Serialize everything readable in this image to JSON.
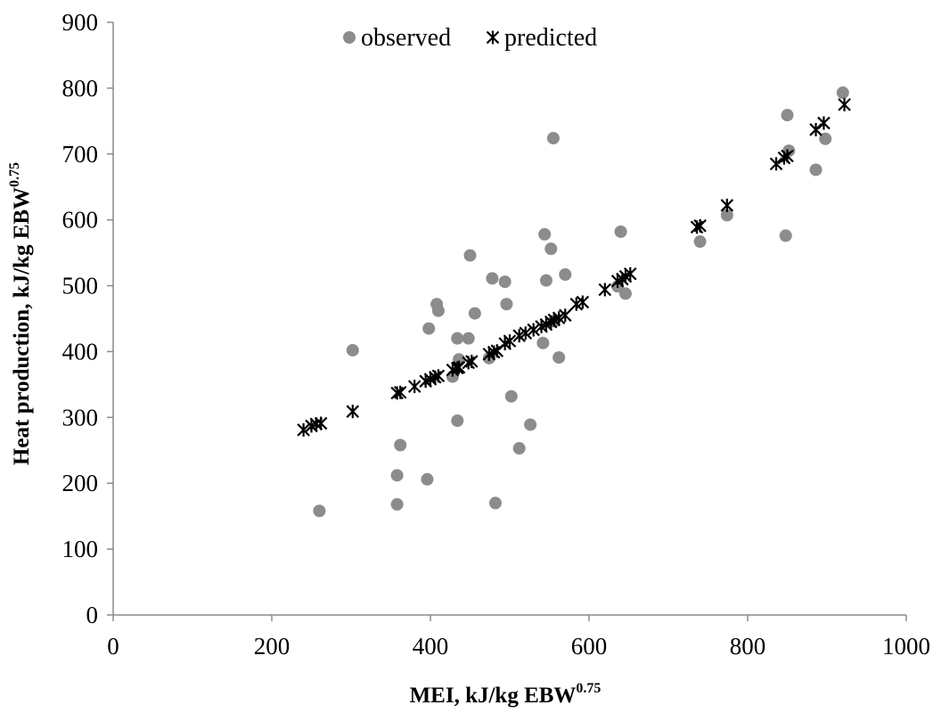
{
  "chart_data": {
    "type": "scatter",
    "xlabel": "MEI, kJ/kg EBW",
    "xlabel_sup": "0.75",
    "ylabel": "Heat production, kJ/kg EBW",
    "ylabel_sup": "0.75",
    "xlim": [
      0,
      1000
    ],
    "ylim": [
      0,
      900
    ],
    "xticks": [
      "0",
      "200",
      "400",
      "600",
      "800",
      "1000"
    ],
    "yticks": [
      "0",
      "100",
      "200",
      "300",
      "400",
      "500",
      "600",
      "700",
      "800",
      "900"
    ],
    "grid": false,
    "legend_position": "top-center",
    "series": [
      {
        "name": "observed",
        "marker": "circle",
        "color": "#8c8c8c",
        "x": [
          260,
          302,
          358,
          358,
          362,
          396,
          398,
          408,
          410,
          428,
          434,
          434,
          436,
          448,
          450,
          456,
          474,
          478,
          482,
          494,
          496,
          502,
          512,
          526,
          542,
          544,
          546,
          552,
          555,
          556,
          562,
          570,
          636,
          640,
          646,
          740,
          774,
          848,
          850,
          852,
          886,
          898,
          920
        ],
        "y": [
          158,
          402,
          168,
          212,
          258,
          206,
          435,
          472,
          462,
          362,
          420,
          295,
          388,
          420,
          546,
          458,
          390,
          511,
          170,
          506,
          472,
          332,
          253,
          289,
          413,
          578,
          508,
          556,
          724,
          446,
          391,
          517,
          499,
          582,
          488,
          567,
          607,
          576,
          759,
          705,
          676,
          723,
          793
        ]
      },
      {
        "name": "predicted",
        "marker": "star",
        "color": "#000000",
        "x": [
          240,
          250,
          256,
          262,
          302,
          358,
          362,
          380,
          394,
          400,
          406,
          410,
          428,
          434,
          436,
          448,
          452,
          474,
          480,
          484,
          494,
          500,
          512,
          520,
          530,
          540,
          546,
          552,
          556,
          562,
          570,
          584,
          592,
          620,
          636,
          642,
          646,
          652,
          736,
          740,
          774,
          836,
          846,
          850,
          886,
          896,
          922
        ],
        "y": [
          281,
          287,
          290,
          291,
          309,
          337,
          338,
          347,
          355,
          358,
          361,
          363,
          372,
          375,
          376,
          383,
          385,
          396,
          399,
          401,
          412,
          416,
          424,
          428,
          433,
          438,
          441,
          445,
          448,
          451,
          455,
          472,
          475,
          494,
          507,
          510,
          514,
          518,
          589,
          591,
          622,
          685,
          694,
          697,
          737,
          747,
          775
        ]
      }
    ]
  }
}
